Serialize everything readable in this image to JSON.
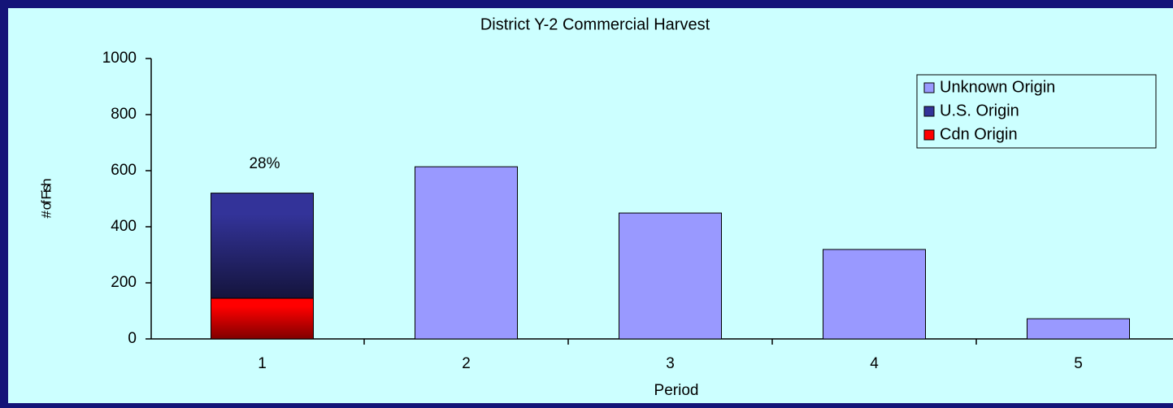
{
  "chart_data": {
    "type": "stacked-bar",
    "title": "District Y-2 Commercial Harvest",
    "xlabel": "Period",
    "ylabel": "# of Fish",
    "categories": [
      "1",
      "2",
      "3",
      "4",
      "5"
    ],
    "series": [
      {
        "name": "Cdn Origin",
        "color": "#ff0000",
        "values": [
          145,
          null,
          null,
          null,
          null
        ]
      },
      {
        "name": "U.S. Origin",
        "color": "#333399",
        "values": [
          375,
          null,
          null,
          null,
          null
        ]
      },
      {
        "name": "Unknown Origin",
        "color": "#9999ff",
        "values": [
          null,
          614,
          449,
          319,
          72
        ]
      }
    ],
    "annotation": "28%",
    "ylim": [
      0,
      1000
    ],
    "yticks": [
      0,
      200,
      400,
      600,
      800,
      1000
    ],
    "legend": "upper right"
  }
}
